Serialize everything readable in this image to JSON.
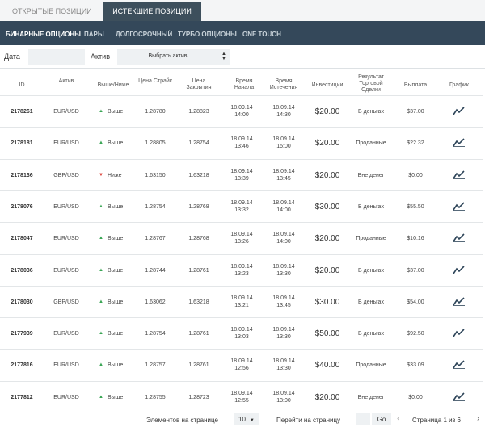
{
  "tabs": {
    "open": "ОТКРЫТЫЕ ПОЗИЦИИ",
    "expired": "ИСТЕКШИЕ ПОЗИЦИИ"
  },
  "subtabs": [
    "БИНАРНЫЕ ОПЦИОНЫ",
    "ПАРЫ",
    "ДОЛГОСРОЧНЫЙ",
    "ТУРБО ОПЦИОНЫ",
    "ONE TOUCH"
  ],
  "filters": {
    "date_label": "Дата",
    "asset_label": "Актив",
    "asset_select": "Выбрать актив"
  },
  "table": {
    "columns": [
      "ID",
      "Актив",
      "Выше/Ниже",
      "Цена Страйк",
      "Цена Закрытия",
      "Время Начала",
      "Время Истечения",
      "Инвестиции",
      "Результат Торговой Сделки",
      "Выплата",
      "График"
    ],
    "rows": [
      {
        "id": "2178261",
        "asset": "EUR/USD",
        "arrow": "▲",
        "direction": "Выше",
        "strike": "1.28780",
        "close": "1.28823",
        "start": [
          "18.09.14",
          "14:00"
        ],
        "expiry": [
          "18.09.14",
          "14:30"
        ],
        "investment": "$20.00",
        "result": "В деньгах",
        "payout": "$37.00"
      },
      {
        "id": "2178181",
        "asset": "EUR/USD",
        "arrow": "▲",
        "direction": "Выше",
        "strike": "1.28805",
        "close": "1.28754",
        "start": [
          "18.09.14",
          "13:46"
        ],
        "expiry": [
          "18.09.14",
          "15:00"
        ],
        "investment": "$20.00",
        "result": "Проданные",
        "payout": "$22.32"
      },
      {
        "id": "2178136",
        "asset": "GBP/USD",
        "arrow": "▼",
        "direction": "Ниже",
        "strike": "1.63150",
        "close": "1.63218",
        "start": [
          "18.09.14",
          "13:39"
        ],
        "expiry": [
          "18.09.14",
          "13:45"
        ],
        "investment": "$20.00",
        "result": "Вне денег",
        "payout": "$0.00"
      },
      {
        "id": "2178076",
        "asset": "EUR/USD",
        "arrow": "▲",
        "direction": "Выше",
        "strike": "1.28754",
        "close": "1.28768",
        "start": [
          "18.09.14",
          "13:32"
        ],
        "expiry": [
          "18.09.14",
          "14:00"
        ],
        "investment": "$30.00",
        "result": "В деньгах",
        "payout": "$55.50"
      },
      {
        "id": "2178047",
        "asset": "EUR/USD",
        "arrow": "▲",
        "direction": "Выше",
        "strike": "1.28767",
        "close": "1.28768",
        "start": [
          "18.09.14",
          "13:26"
        ],
        "expiry": [
          "18.09.14",
          "14:00"
        ],
        "investment": "$20.00",
        "result": "Проданные",
        "payout": "$10.16"
      },
      {
        "id": "2178036",
        "asset": "EUR/USD",
        "arrow": "▲",
        "direction": "Выше",
        "strike": "1.28744",
        "close": "1.28761",
        "start": [
          "18.09.14",
          "13:23"
        ],
        "expiry": [
          "18.09.14",
          "13:30"
        ],
        "investment": "$20.00",
        "result": "В деньгах",
        "payout": "$37.00"
      },
      {
        "id": "2178030",
        "asset": "GBP/USD",
        "arrow": "▲",
        "direction": "Выше",
        "strike": "1.63062",
        "close": "1.63218",
        "start": [
          "18.09.14",
          "13:21"
        ],
        "expiry": [
          "18.09.14",
          "13:45"
        ],
        "investment": "$30.00",
        "result": "В деньгах",
        "payout": "$54.00"
      },
      {
        "id": "2177939",
        "asset": "EUR/USD",
        "arrow": "▲",
        "direction": "Выше",
        "strike": "1.28754",
        "close": "1.28761",
        "start": [
          "18.09.14",
          "13:03"
        ],
        "expiry": [
          "18.09.14",
          "13:30"
        ],
        "investment": "$50.00",
        "result": "В деньгах",
        "payout": "$92.50"
      },
      {
        "id": "2177816",
        "asset": "EUR/USD",
        "arrow": "▲",
        "direction": "Выше",
        "strike": "1.28757",
        "close": "1.28761",
        "start": [
          "18.09.14",
          "12:56"
        ],
        "expiry": [
          "18.09.14",
          "13:30"
        ],
        "investment": "$40.00",
        "result": "Проданные",
        "payout": "$33.09"
      },
      {
        "id": "2177812",
        "asset": "EUR/USD",
        "arrow": "▲",
        "direction": "Выше",
        "strike": "1.28755",
        "close": "1.28723",
        "start": [
          "18.09.14",
          "12:55"
        ],
        "expiry": [
          "18.09.14",
          "13:00"
        ],
        "investment": "$20.00",
        "result": "Вне денег",
        "payout": "$0.00"
      }
    ]
  },
  "footer": {
    "per_page_label": "Элементов на странице",
    "per_page": "10",
    "goto_label": "Перейти на страницу",
    "go": "Go",
    "page_info": "Страница 1 из 6"
  }
}
